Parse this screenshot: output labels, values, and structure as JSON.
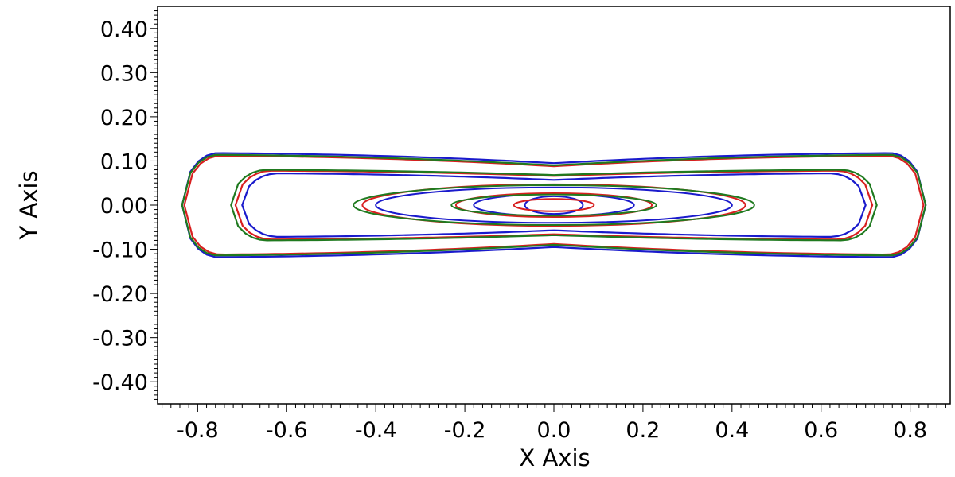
{
  "chart_data": {
    "type": "line",
    "title": "",
    "xlabel": "X Axis",
    "ylabel": "Y Axis",
    "xlim": [
      -0.89,
      0.89
    ],
    "ylim": [
      -0.45,
      0.45
    ],
    "x_ticks": [
      -0.8,
      -0.6,
      -0.4,
      -0.2,
      0.0,
      0.2,
      0.4,
      0.6,
      0.8
    ],
    "x_tick_labels": [
      "-0.8",
      "-0.6",
      "-0.4",
      "-0.2",
      "0.0",
      "0.2",
      "0.4",
      "0.6",
      "0.8"
    ],
    "y_ticks": [
      0.4,
      0.3,
      0.2,
      0.1,
      0.0,
      -0.1,
      -0.2,
      -0.3,
      -0.4
    ],
    "y_tick_labels": [
      "0.40",
      "0.30",
      "0.20",
      "0.10",
      "0.00",
      "-0.10",
      "-0.20",
      "-0.30",
      "-0.40"
    ],
    "grid": false,
    "legend": "none",
    "series": [
      {
        "color": "#1a1acc",
        "contours": [
          {
            "kind": "ellipse",
            "cx": 0.0,
            "cy": 0.0,
            "rx": 0.065,
            "ry": 0.02
          },
          {
            "kind": "ellipse",
            "cx": 0.0,
            "cy": 0.0,
            "rx": 0.18,
            "ry": 0.025
          },
          {
            "kind": "ellipse",
            "cx": 0.0,
            "cy": 0.0,
            "rx": 0.4,
            "ry": 0.04
          },
          {
            "kind": "lobed",
            "hw": 0.7,
            "h_max": 0.072,
            "h_mid": 0.057
          },
          {
            "kind": "lobed",
            "hw": 0.835,
            "h_max": 0.118,
            "h_mid": 0.095
          }
        ]
      },
      {
        "color": "#d81f1f",
        "contours": [
          {
            "kind": "ellipse",
            "cx": 0.0,
            "cy": 0.0,
            "rx": 0.09,
            "ry": 0.014
          },
          {
            "kind": "ellipse",
            "cx": 0.0,
            "cy": 0.0,
            "rx": 0.22,
            "ry": 0.027
          },
          {
            "kind": "ellipse",
            "cx": 0.0,
            "cy": 0.0,
            "rx": 0.43,
            "ry": 0.047
          },
          {
            "kind": "lobed",
            "hw": 0.715,
            "h_max": 0.078,
            "h_mid": 0.066
          },
          {
            "kind": "lobed",
            "hw": 0.83,
            "h_max": 0.112,
            "h_mid": 0.088
          }
        ]
      },
      {
        "color": "#1f7a1f",
        "contours": [
          {
            "kind": "ellipse",
            "cx": 0.0,
            "cy": 0.0,
            "rx": 0.23,
            "ry": 0.024
          },
          {
            "kind": "ellipse",
            "cx": 0.0,
            "cy": 0.0,
            "rx": 0.45,
            "ry": 0.045
          },
          {
            "kind": "lobed",
            "hw": 0.725,
            "h_max": 0.08,
            "h_mid": 0.068
          },
          {
            "kind": "lobed",
            "hw": 0.835,
            "h_max": 0.114,
            "h_mid": 0.09
          }
        ]
      }
    ]
  }
}
